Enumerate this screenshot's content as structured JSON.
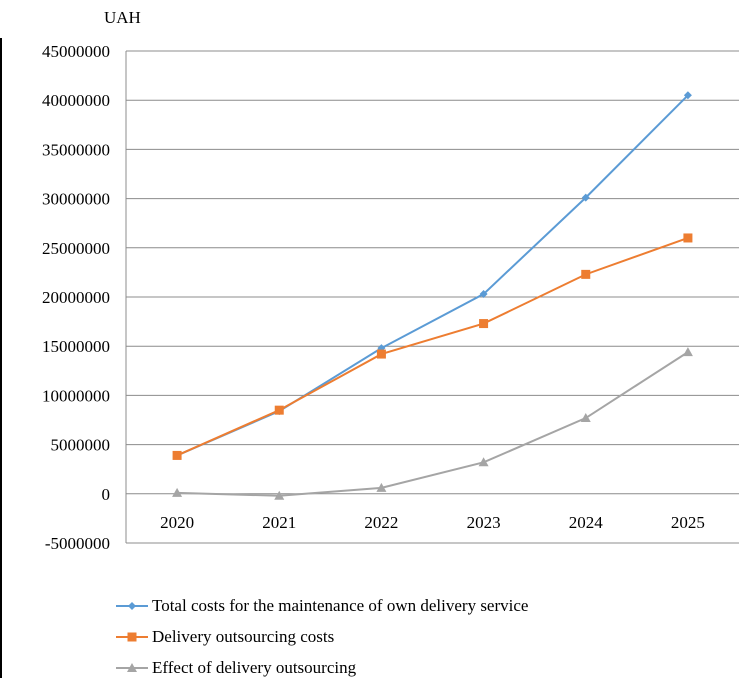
{
  "chart_data": {
    "type": "line",
    "ylabel": "UAH",
    "categories": [
      "2020",
      "2021",
      "2022",
      "2023",
      "2024",
      "2025"
    ],
    "ylim": [
      -5000000,
      45000000
    ],
    "yticks": [
      45000000,
      40000000,
      35000000,
      30000000,
      25000000,
      20000000,
      15000000,
      10000000,
      5000000,
      0,
      -5000000
    ],
    "ytick_labels": [
      "45000000",
      "40000000",
      "35000000",
      "30000000",
      "25000000",
      "20000000",
      "15000000",
      "10000000",
      "5000000",
      "0",
      "-5000000"
    ],
    "grid": true,
    "legend_position": "bottom",
    "series": [
      {
        "name": "Total costs for the maintenance of own delivery service",
        "color": "#5b9bd5",
        "marker": "diamond",
        "values": [
          3900000,
          8400000,
          14800000,
          20300000,
          30100000,
          40500000
        ]
      },
      {
        "name": "Delivery outsourcing costs",
        "color": "#ed7d31",
        "marker": "square",
        "values": [
          3900000,
          8500000,
          14200000,
          17300000,
          22300000,
          26000000
        ]
      },
      {
        "name": "Effect of delivery outsourcing",
        "color": "#a5a5a5",
        "marker": "triangle",
        "values": [
          100000,
          -200000,
          600000,
          3200000,
          7700000,
          14400000
        ]
      }
    ]
  }
}
